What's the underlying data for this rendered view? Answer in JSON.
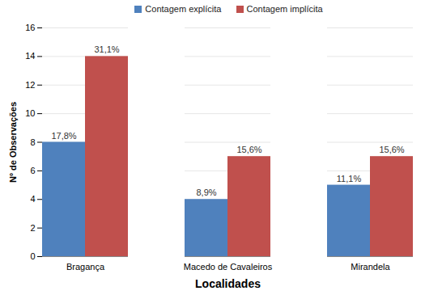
{
  "chart_data": {
    "type": "bar",
    "x_label": "Localidades",
    "y_label": "Nº de Observações",
    "categories": [
      "Bragança",
      "Macedo de Cavaleiros",
      "Mirandela"
    ],
    "series": [
      {
        "name": "Contagem explícita",
        "color": "#4f81bd",
        "values": [
          8,
          4,
          5
        ],
        "percent_labels": [
          "17,8%",
          "8,9%",
          "11,1%"
        ]
      },
      {
        "name": "Contagem implícita",
        "color": "#c0504d",
        "values": [
          14,
          7,
          7
        ],
        "percent_labels": [
          "31,1%",
          "15,6%",
          "15,6%"
        ]
      }
    ],
    "ylim": [
      0,
      16
    ],
    "yticks": [
      0,
      2,
      4,
      6,
      8,
      10,
      12,
      14,
      16
    ],
    "grid": true,
    "legend": "top"
  }
}
